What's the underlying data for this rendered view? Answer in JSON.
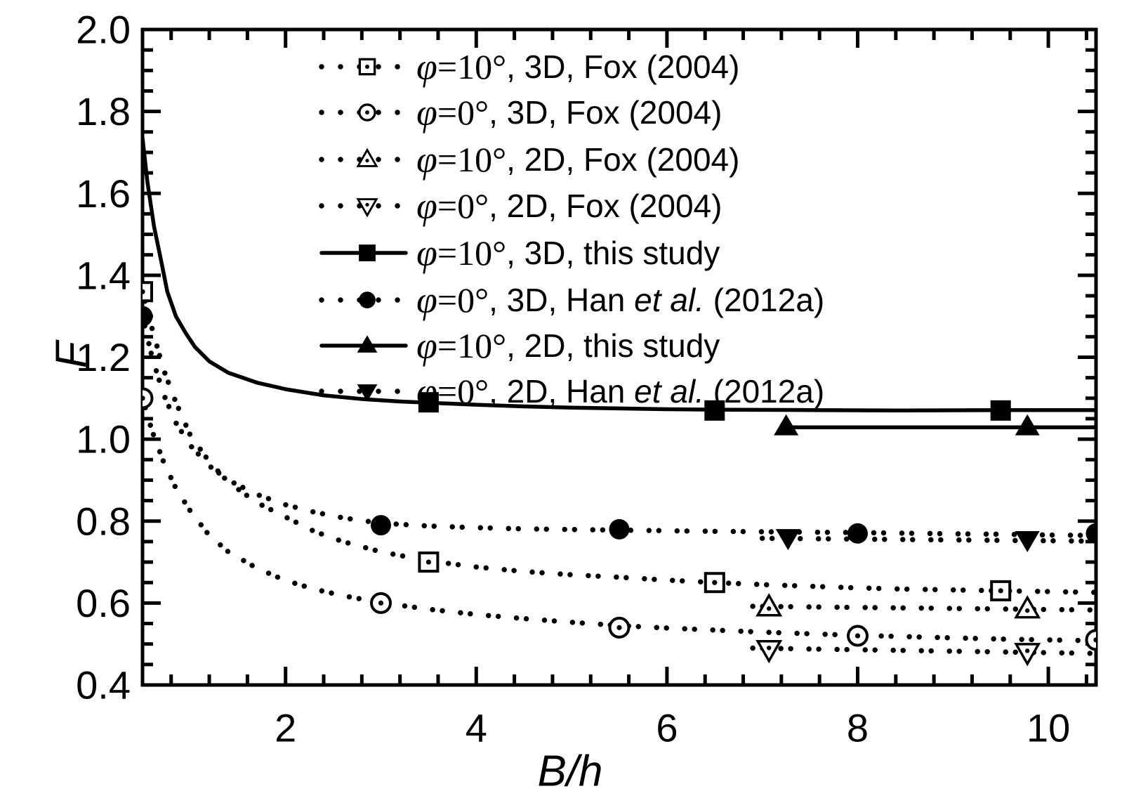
{
  "canvas": {
    "background": "#ffffff",
    "ink": "#000000"
  },
  "chart_data": {
    "type": "line",
    "title": "",
    "xlabel": "B/h",
    "ylabel": "F",
    "xlim": [
      0.5,
      10.5
    ],
    "ylim": [
      0.4,
      2.0
    ],
    "grid": false,
    "legend_position": "upper-left-inside",
    "x_major_ticks": [
      {
        "v": 2,
        "label": "2"
      },
      {
        "v": 4,
        "label": "4"
      },
      {
        "v": 6,
        "label": "6"
      },
      {
        "v": 8,
        "label": "8"
      },
      {
        "v": 10,
        "label": "10"
      }
    ],
    "x_minor_tick_step": 0.4,
    "y_major_ticks": [
      {
        "v": 0.4,
        "label": "0.4"
      },
      {
        "v": 0.6,
        "label": "0.6"
      },
      {
        "v": 0.8,
        "label": "0.8"
      },
      {
        "v": 1.0,
        "label": "1.0"
      },
      {
        "v": 1.2,
        "label": "1.2"
      },
      {
        "v": 1.4,
        "label": "1.4"
      },
      {
        "v": 1.6,
        "label": "1.6"
      },
      {
        "v": 1.8,
        "label": "1.8"
      },
      {
        "v": 2.0,
        "label": "2.0"
      }
    ],
    "y_minor_tick_step": 0.05,
    "series": [
      {
        "id": "fox2004-3d-phi10",
        "label": "φ=10°, 3D, Fox (2004)",
        "label_parts": [
          {
            "t": "φ",
            "s": "phi"
          },
          {
            "t": "=10°",
            "s": "serif"
          },
          {
            "t": ", 3D, Fox (2004)",
            "s": "sans"
          }
        ],
        "marker": "square-open",
        "line_style": "dotted",
        "points": [
          [
            0.5,
            1.36
          ],
          [
            3.5,
            0.7
          ],
          [
            6.5,
            0.65
          ],
          [
            9.5,
            0.63
          ]
        ],
        "line_points": [
          [
            0.5,
            1.36
          ],
          [
            0.6,
            1.27
          ],
          [
            0.72,
            1.17
          ],
          [
            0.85,
            1.09
          ],
          [
            1.0,
            1.01
          ],
          [
            1.2,
            0.945
          ],
          [
            1.4,
            0.895
          ],
          [
            1.7,
            0.845
          ],
          [
            2.0,
            0.81
          ],
          [
            2.3,
            0.775
          ],
          [
            2.6,
            0.75
          ],
          [
            3.0,
            0.725
          ],
          [
            3.5,
            0.703
          ],
          [
            4.0,
            0.688
          ],
          [
            4.5,
            0.677
          ],
          [
            5.0,
            0.669
          ],
          [
            5.5,
            0.663
          ],
          [
            6.0,
            0.656
          ],
          [
            6.5,
            0.65
          ],
          [
            7.0,
            0.645
          ],
          [
            7.5,
            0.641
          ],
          [
            8.0,
            0.637
          ],
          [
            8.5,
            0.634
          ],
          [
            9.0,
            0.632
          ],
          [
            9.5,
            0.63
          ],
          [
            10.0,
            0.628
          ],
          [
            10.5,
            0.626
          ]
        ]
      },
      {
        "id": "fox2004-3d-phi0",
        "label": "φ=0°, 3D, Fox (2004)",
        "label_parts": [
          {
            "t": "φ",
            "s": "phi"
          },
          {
            "t": "=0°",
            "s": "serif"
          },
          {
            "t": ", 3D, Fox (2004)",
            "s": "sans"
          }
        ],
        "marker": "circle-open",
        "line_style": "dotted",
        "points": [
          [
            0.5,
            1.1
          ],
          [
            3.0,
            0.6
          ],
          [
            5.5,
            0.54
          ],
          [
            8.0,
            0.52
          ],
          [
            10.5,
            0.51
          ]
        ],
        "line_points": [
          [
            0.5,
            1.1
          ],
          [
            0.6,
            1.02
          ],
          [
            0.72,
            0.945
          ],
          [
            0.85,
            0.88
          ],
          [
            1.0,
            0.825
          ],
          [
            1.2,
            0.765
          ],
          [
            1.4,
            0.725
          ],
          [
            1.7,
            0.685
          ],
          [
            2.0,
            0.655
          ],
          [
            2.3,
            0.634
          ],
          [
            2.6,
            0.618
          ],
          [
            3.0,
            0.601
          ],
          [
            3.5,
            0.585
          ],
          [
            4.0,
            0.572
          ],
          [
            4.5,
            0.562
          ],
          [
            5.0,
            0.553
          ],
          [
            5.5,
            0.545
          ],
          [
            6.0,
            0.539
          ],
          [
            6.5,
            0.534
          ],
          [
            7.0,
            0.529
          ],
          [
            7.5,
            0.525
          ],
          [
            8.0,
            0.521
          ],
          [
            8.5,
            0.518
          ],
          [
            9.0,
            0.515
          ],
          [
            9.5,
            0.512
          ],
          [
            10.0,
            0.51
          ],
          [
            10.5,
            0.508
          ]
        ]
      },
      {
        "id": "fox2004-2d-phi10",
        "label": "φ=10°, 2D, Fox (2004)",
        "label_parts": [
          {
            "t": "φ",
            "s": "phi"
          },
          {
            "t": "=10°",
            "s": "serif"
          },
          {
            "t": ", 2D, Fox (2004)",
            "s": "sans"
          }
        ],
        "marker": "triangle-up-open",
        "line_style": "dotted",
        "points": [
          [
            7.07,
            0.59
          ],
          [
            9.78,
            0.585
          ]
        ],
        "line_points": [
          [
            6.9,
            0.592
          ],
          [
            10.5,
            0.583
          ]
        ]
      },
      {
        "id": "fox2004-2d-phi0",
        "label": "φ=0°, 2D, Fox (2004)",
        "label_parts": [
          {
            "t": "φ",
            "s": "phi"
          },
          {
            "t": "=0°",
            "s": "serif"
          },
          {
            "t": ", 2D, Fox (2004)",
            "s": "sans"
          }
        ],
        "marker": "triangle-down-open",
        "line_style": "dotted",
        "points": [
          [
            7.07,
            0.487
          ],
          [
            9.78,
            0.48
          ]
        ],
        "line_points": [
          [
            6.9,
            0.49
          ],
          [
            10.5,
            0.477
          ]
        ]
      },
      {
        "id": "this-study-3d-phi10",
        "label": "φ=10°, 3D, this study",
        "label_parts": [
          {
            "t": "φ",
            "s": "phi"
          },
          {
            "t": "=10°",
            "s": "serif"
          },
          {
            "t": ", 3D, this study",
            "s": "sans"
          }
        ],
        "marker": "square-filled",
        "line_style": "solid",
        "points": [
          [
            3.5,
            1.09
          ],
          [
            6.5,
            1.07
          ],
          [
            9.5,
            1.07
          ]
        ],
        "line_points": [
          [
            0.5,
            1.735
          ],
          [
            0.55,
            1.63
          ],
          [
            0.62,
            1.52
          ],
          [
            0.7,
            1.43
          ],
          [
            0.76,
            1.36
          ],
          [
            0.85,
            1.3
          ],
          [
            0.95,
            1.26
          ],
          [
            1.05,
            1.225
          ],
          [
            1.2,
            1.19
          ],
          [
            1.4,
            1.162
          ],
          [
            1.7,
            1.138
          ],
          [
            2.0,
            1.122
          ],
          [
            2.4,
            1.107
          ],
          [
            2.8,
            1.098
          ],
          [
            3.2,
            1.092
          ],
          [
            3.5,
            1.089
          ],
          [
            4.0,
            1.084
          ],
          [
            4.5,
            1.08
          ],
          [
            5.0,
            1.077
          ],
          [
            5.5,
            1.075
          ],
          [
            6.0,
            1.073
          ],
          [
            6.5,
            1.072
          ],
          [
            7.5,
            1.071
          ],
          [
            8.5,
            1.07
          ],
          [
            9.5,
            1.071
          ],
          [
            10.5,
            1.071
          ]
        ]
      },
      {
        "id": "han2012a-3d-phi0",
        "label": "φ=0°, 3D, Han et al. (2012a)",
        "label_parts": [
          {
            "t": "φ",
            "s": "phi"
          },
          {
            "t": "=0°",
            "s": "serif"
          },
          {
            "t": ", 3D, Han ",
            "s": "sans"
          },
          {
            "t": "et al.",
            "s": "sansit"
          },
          {
            "t": " (2012a)",
            "s": "sans"
          }
        ],
        "marker": "circle-filled",
        "line_style": "dotted",
        "points": [
          [
            0.5,
            1.3
          ],
          [
            3.0,
            0.79
          ],
          [
            5.5,
            0.78
          ],
          [
            8.0,
            0.77
          ],
          [
            10.5,
            0.77
          ]
        ],
        "line_points": [
          [
            0.5,
            1.3
          ],
          [
            0.6,
            1.2
          ],
          [
            0.72,
            1.11
          ],
          [
            0.85,
            1.04
          ],
          [
            1.0,
            0.985
          ],
          [
            1.2,
            0.935
          ],
          [
            1.4,
            0.9
          ],
          [
            1.7,
            0.865
          ],
          [
            2.0,
            0.84
          ],
          [
            2.3,
            0.822
          ],
          [
            2.6,
            0.808
          ],
          [
            3.0,
            0.795
          ],
          [
            3.5,
            0.788
          ],
          [
            4.0,
            0.784
          ],
          [
            4.5,
            0.781
          ],
          [
            5.5,
            0.778
          ],
          [
            6.5,
            0.775
          ],
          [
            7.5,
            0.773
          ],
          [
            8.0,
            0.772
          ],
          [
            9.0,
            0.769
          ],
          [
            9.5,
            0.768
          ],
          [
            10.0,
            0.766
          ],
          [
            10.5,
            0.765
          ]
        ]
      },
      {
        "id": "this-study-2d-phi10",
        "label": "φ=10°, 2D, this study",
        "label_parts": [
          {
            "t": "φ",
            "s": "phi"
          },
          {
            "t": "=10°",
            "s": "serif"
          },
          {
            "t": ", 2D, this study",
            "s": "sans"
          }
        ],
        "marker": "triangle-up-filled",
        "line_style": "solid",
        "points": [
          [
            7.25,
            1.03
          ],
          [
            9.78,
            1.03
          ]
        ],
        "line_points": [
          [
            7.25,
            1.029
          ],
          [
            10.5,
            1.029
          ]
        ]
      },
      {
        "id": "han2012a-2d-phi0",
        "label": "φ=0°, 2D, Han et al. (2012a)",
        "label_parts": [
          {
            "t": "φ",
            "s": "phi"
          },
          {
            "t": "=0°",
            "s": "serif"
          },
          {
            "t": ", 2D, Han ",
            "s": "sans"
          },
          {
            "t": "et al.",
            "s": "sansit"
          },
          {
            "t": " (2012a)",
            "s": "sans"
          }
        ],
        "marker": "triangle-down-filled",
        "line_style": "dotted",
        "points": [
          [
            7.27,
            0.76
          ],
          [
            9.78,
            0.755
          ]
        ],
        "line_points": [
          [
            7.0,
            0.758
          ],
          [
            10.5,
            0.751
          ]
        ]
      }
    ]
  }
}
